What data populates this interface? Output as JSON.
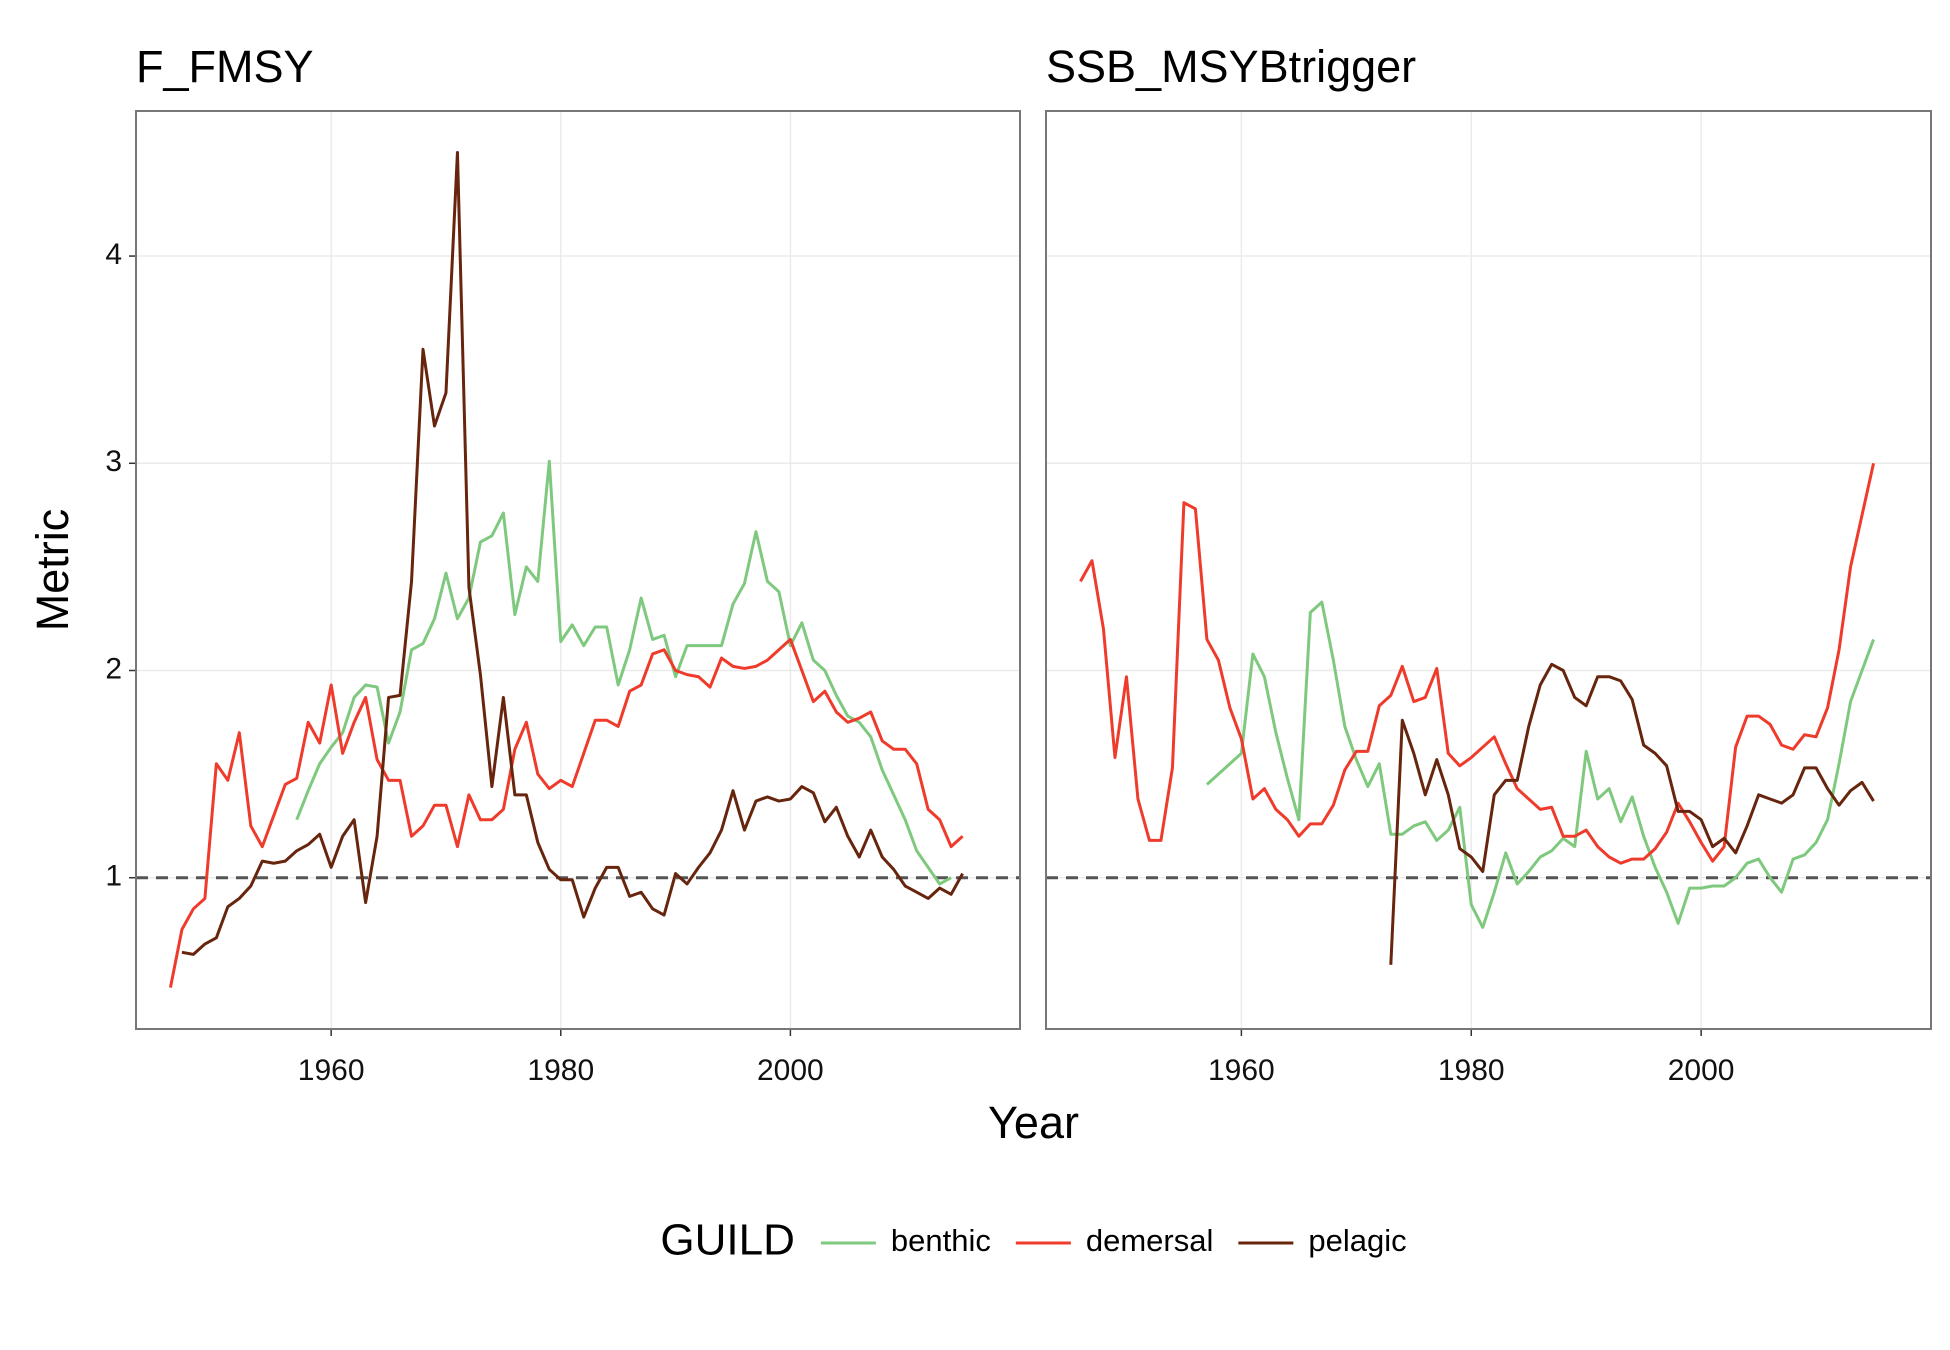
{
  "chart_data": [
    {
      "type": "line",
      "title": "F_FMSY",
      "ylabel": "Metric",
      "xlabel": "Year",
      "legend_title": "GUILD",
      "x": [
        1946,
        1947,
        1948,
        1949,
        1950,
        1951,
        1952,
        1953,
        1954,
        1955,
        1956,
        1957,
        1958,
        1959,
        1960,
        1961,
        1962,
        1963,
        1964,
        1965,
        1966,
        1967,
        1968,
        1969,
        1970,
        1971,
        1972,
        1973,
        1974,
        1975,
        1976,
        1977,
        1978,
        1979,
        1980,
        1981,
        1982,
        1983,
        1984,
        1985,
        1986,
        1987,
        1988,
        1989,
        1990,
        1991,
        1992,
        1993,
        1994,
        1995,
        1996,
        1997,
        1998,
        1999,
        2000,
        2001,
        2002,
        2003,
        2004,
        2005,
        2006,
        2007,
        2008,
        2009,
        2010,
        2011,
        2012,
        2013,
        2014,
        2015
      ],
      "xlim": [
        1943,
        2020
      ],
      "xticks": [
        1960,
        1980,
        2000
      ],
      "ylim": [
        0.27,
        4.7
      ],
      "yticks": [
        1,
        2,
        3,
        4
      ],
      "grid": true,
      "hline": 1,
      "series": [
        {
          "name": "benthic",
          "color": "#7fc97f",
          "values": [
            null,
            null,
            null,
            null,
            null,
            null,
            null,
            null,
            null,
            null,
            null,
            1.28,
            1.42,
            1.55,
            1.63,
            1.7,
            1.87,
            1.93,
            1.92,
            1.65,
            1.8,
            2.1,
            2.13,
            2.25,
            2.47,
            2.25,
            2.35,
            2.62,
            2.65,
            2.76,
            2.27,
            2.5,
            2.43,
            3.01,
            2.14,
            2.22,
            2.12,
            2.21,
            2.21,
            1.93,
            2.1,
            2.35,
            2.15,
            2.17,
            1.97,
            2.12,
            2.12,
            2.12,
            2.12,
            2.32,
            2.42,
            2.67,
            2.43,
            2.38,
            2.12,
            2.23,
            2.05,
            2.0,
            1.88,
            1.78,
            1.75,
            1.68,
            1.52,
            1.4,
            1.28,
            1.13,
            1.05,
            0.97,
            1.0,
            null
          ]
        },
        {
          "name": "demersal",
          "color": "#ef3b2c",
          "values": [
            0.47,
            0.75,
            0.85,
            0.9,
            1.55,
            1.47,
            1.7,
            1.25,
            1.15,
            1.3,
            1.45,
            1.48,
            1.75,
            1.65,
            1.93,
            1.6,
            1.75,
            1.87,
            1.57,
            1.47,
            1.47,
            1.2,
            1.25,
            1.35,
            1.35,
            1.15,
            1.4,
            1.28,
            1.28,
            1.33,
            1.62,
            1.75,
            1.5,
            1.43,
            1.47,
            1.44,
            1.6,
            1.76,
            1.76,
            1.73,
            1.9,
            1.93,
            2.08,
            2.1,
            2.0,
            1.98,
            1.97,
            1.92,
            2.06,
            2.02,
            2.01,
            2.02,
            2.05,
            2.1,
            2.15,
            2.0,
            1.85,
            1.9,
            1.8,
            1.75,
            1.77,
            1.8,
            1.66,
            1.62,
            1.62,
            1.55,
            1.33,
            1.28,
            1.15,
            1.2
          ]
        },
        {
          "name": "pelagic",
          "color": "#67250e",
          "values": [
            null,
            0.64,
            0.63,
            0.68,
            0.71,
            0.86,
            0.9,
            0.96,
            1.08,
            1.07,
            1.08,
            1.13,
            1.16,
            1.21,
            1.05,
            1.2,
            1.28,
            0.88,
            1.2,
            1.87,
            1.88,
            2.43,
            3.55,
            3.18,
            3.34,
            4.5,
            2.4,
            1.98,
            1.44,
            1.87,
            1.4,
            1.4,
            1.17,
            1.04,
            0.99,
            0.99,
            0.81,
            0.95,
            1.05,
            1.05,
            0.91,
            0.93,
            0.85,
            0.82,
            1.02,
            0.97,
            1.05,
            1.12,
            1.23,
            1.42,
            1.23,
            1.37,
            1.39,
            1.37,
            1.38,
            1.44,
            1.41,
            1.27,
            1.34,
            1.2,
            1.1,
            1.23,
            1.1,
            1.04,
            0.96,
            0.93,
            0.9,
            0.95,
            0.92,
            1.02
          ]
        }
      ]
    },
    {
      "type": "line",
      "title": "SSB_MSYBtrigger",
      "x": [
        1946,
        1947,
        1948,
        1949,
        1950,
        1951,
        1952,
        1953,
        1954,
        1955,
        1956,
        1957,
        1958,
        1959,
        1960,
        1961,
        1962,
        1963,
        1964,
        1965,
        1966,
        1967,
        1968,
        1969,
        1970,
        1971,
        1972,
        1973,
        1974,
        1975,
        1976,
        1977,
        1978,
        1979,
        1980,
        1981,
        1982,
        1983,
        1984,
        1985,
        1986,
        1987,
        1988,
        1989,
        1990,
        1991,
        1992,
        1993,
        1994,
        1995,
        1996,
        1997,
        1998,
        1999,
        2000,
        2001,
        2002,
        2003,
        2004,
        2005,
        2006,
        2007,
        2008,
        2009,
        2010,
        2011,
        2012,
        2013,
        2014,
        2015
      ],
      "xlim": [
        1943,
        2020
      ],
      "xticks": [
        1960,
        1980,
        2000
      ],
      "ylim": [
        0.27,
        4.7
      ],
      "yticks": [
        1,
        2,
        3,
        4
      ],
      "grid": true,
      "hline": 1,
      "series": [
        {
          "color": "#7fc97f",
          "values": [
            null,
            null,
            null,
            null,
            null,
            null,
            null,
            null,
            null,
            null,
            null,
            1.45,
            1.5,
            1.55,
            1.6,
            2.08,
            1.97,
            1.7,
            1.48,
            1.28,
            2.28,
            2.33,
            2.05,
            1.73,
            1.57,
            1.44,
            1.55,
            1.21,
            1.21,
            1.25,
            1.27,
            1.18,
            1.23,
            1.34,
            0.87,
            0.76,
            0.93,
            1.12,
            0.97,
            1.03,
            1.1,
            1.13,
            1.19,
            1.15,
            1.61,
            1.38,
            1.43,
            1.27,
            1.39,
            1.2,
            1.05,
            0.93,
            0.78,
            0.95,
            0.95,
            0.96,
            0.96,
            1.0,
            1.07,
            1.09,
            1.0,
            0.93,
            1.09,
            1.11,
            1.17,
            1.28,
            1.55,
            1.85,
            2.0,
            2.15
          ]
        },
        {
          "color": "#ef3b2c",
          "values": [
            2.43,
            2.53,
            2.2,
            1.58,
            1.97,
            1.38,
            1.18,
            1.18,
            1.53,
            2.81,
            2.78,
            2.15,
            2.05,
            1.82,
            1.67,
            1.38,
            1.43,
            1.33,
            1.28,
            1.2,
            1.26,
            1.26,
            1.35,
            1.52,
            1.61,
            1.61,
            1.83,
            1.88,
            2.02,
            1.85,
            1.87,
            2.01,
            1.6,
            1.54,
            1.58,
            1.63,
            1.68,
            1.55,
            1.43,
            1.38,
            1.33,
            1.34,
            1.2,
            1.2,
            1.23,
            1.15,
            1.1,
            1.07,
            1.09,
            1.09,
            1.14,
            1.22,
            1.36,
            1.27,
            1.17,
            1.08,
            1.15,
            1.63,
            1.78,
            1.78,
            1.74,
            1.64,
            1.62,
            1.69,
            1.68,
            1.82,
            2.1,
            2.5,
            2.75,
            3.0
          ]
        },
        {
          "color": "#67250e",
          "values": [
            null,
            null,
            null,
            null,
            null,
            null,
            null,
            null,
            null,
            null,
            null,
            null,
            null,
            null,
            null,
            null,
            null,
            null,
            null,
            null,
            null,
            null,
            null,
            null,
            null,
            null,
            null,
            0.58,
            1.76,
            1.6,
            1.4,
            1.57,
            1.4,
            1.14,
            1.1,
            1.03,
            1.4,
            1.47,
            1.47,
            1.73,
            1.93,
            2.03,
            2.0,
            1.87,
            1.83,
            1.97,
            1.97,
            1.95,
            1.86,
            1.64,
            1.6,
            1.54,
            1.32,
            1.32,
            1.28,
            1.15,
            1.19,
            1.12,
            1.25,
            1.4,
            1.38,
            1.36,
            1.4,
            1.53,
            1.53,
            1.43,
            1.35,
            1.42,
            1.46,
            1.37
          ]
        }
      ]
    }
  ]
}
